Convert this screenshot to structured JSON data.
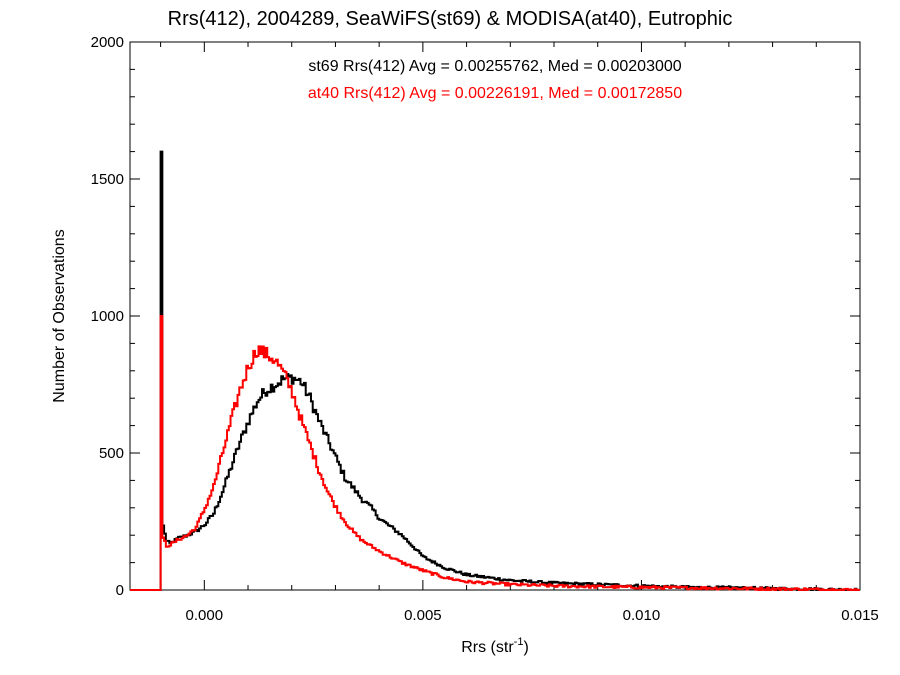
{
  "chart_data": {
    "type": "line",
    "title": "Rrs(412), 2004289, SeaWiFS(st69) & MODISA(at40), Eutrophic",
    "xlabel": "Rrs (str",
    "xlabel_sup": "-1",
    "xlabel_end": ")",
    "ylabel": "Number of Observations",
    "xlim": [
      -0.0017,
      0.015
    ],
    "ylim": [
      0,
      2000
    ],
    "x_ticks": [
      0.0,
      0.005,
      0.01,
      0.015
    ],
    "x_tick_labels": [
      "0.000",
      "0.005",
      "0.010",
      "0.015"
    ],
    "y_ticks": [
      0,
      500,
      1000,
      1500,
      2000
    ],
    "y_tick_labels": [
      "0",
      "500",
      "1000",
      "1500",
      "2000"
    ],
    "grid": false,
    "annotations": [
      {
        "text": "st69 Rrs(412) Avg = 0.00255762, Med = 0.00203000",
        "color": "#000000"
      },
      {
        "text": "at40 Rrs(412) Avg = 0.00226191, Med = 0.00172850",
        "color": "#ff0000"
      }
    ],
    "series": [
      {
        "name": "st69",
        "color": "#000000",
        "style": "histogram-step",
        "spike": {
          "x": -0.001,
          "value": 1600
        },
        "x": [
          -0.0017,
          -0.0011,
          -0.00095,
          -0.0009,
          -0.0008,
          -0.0006,
          -0.0004,
          -0.0002,
          0.0,
          0.0002,
          0.0004,
          0.0006,
          0.0008,
          0.001,
          0.0012,
          0.0014,
          0.0016,
          0.0018,
          0.002,
          0.0022,
          0.0024,
          0.0026,
          0.0028,
          0.003,
          0.0032,
          0.0034,
          0.0036,
          0.0038,
          0.004,
          0.0045,
          0.005,
          0.0055,
          0.006,
          0.007,
          0.008,
          0.009,
          0.01,
          0.011,
          0.012,
          0.013,
          0.014,
          0.015
        ],
        "values": [
          0,
          0,
          250,
          180,
          170,
          190,
          200,
          215,
          240,
          280,
          360,
          450,
          540,
          620,
          690,
          730,
          750,
          770,
          775,
          760,
          700,
          620,
          550,
          480,
          410,
          370,
          330,
          300,
          260,
          200,
          120,
          80,
          55,
          35,
          25,
          20,
          15,
          10,
          8,
          5,
          3,
          0
        ]
      },
      {
        "name": "at40",
        "color": "#ff0000",
        "style": "histogram-step",
        "spike": {
          "x": -0.001,
          "value": 1000
        },
        "x": [
          -0.0017,
          -0.0011,
          -0.00095,
          -0.0009,
          -0.0008,
          -0.0006,
          -0.0004,
          -0.0002,
          0.0,
          0.0002,
          0.0004,
          0.0006,
          0.0008,
          0.001,
          0.0012,
          0.0014,
          0.0016,
          0.0018,
          0.002,
          0.0022,
          0.0024,
          0.0026,
          0.0028,
          0.003,
          0.0032,
          0.0034,
          0.0036,
          0.0038,
          0.004,
          0.0045,
          0.005,
          0.0055,
          0.006,
          0.007,
          0.008,
          0.009,
          0.01,
          0.011,
          0.012,
          0.013,
          0.014,
          0.015
        ],
        "values": [
          0,
          0,
          200,
          160,
          165,
          185,
          200,
          230,
          300,
          380,
          500,
          620,
          730,
          820,
          880,
          860,
          840,
          790,
          720,
          620,
          530,
          440,
          360,
          300,
          250,
          210,
          180,
          160,
          140,
          100,
          70,
          45,
          30,
          20,
          15,
          12,
          10,
          8,
          6,
          4,
          2,
          0
        ]
      }
    ]
  }
}
